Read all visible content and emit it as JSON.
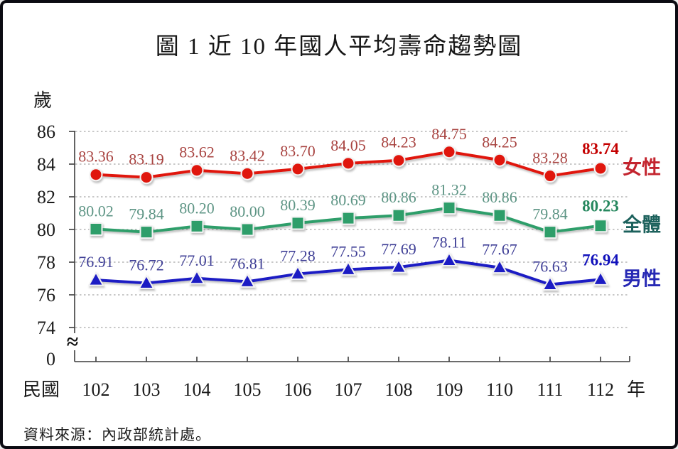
{
  "page": {
    "title": "圖 1  近 10 年國人平均壽命趨勢圖",
    "source": "資料來源：內政部統計處。"
  },
  "chart_data": {
    "type": "line",
    "title": "圖 1  近 10 年國人平均壽命趨勢圖",
    "unit_label": "歲",
    "x_prefix_label": "民國",
    "x_suffix_label": "年",
    "categories": [
      "102",
      "103",
      "104",
      "105",
      "106",
      "107",
      "108",
      "109",
      "110",
      "111",
      "112"
    ],
    "y_ticks": [
      "86",
      "84",
      "82",
      "80",
      "78",
      "76",
      "74"
    ],
    "y_zero_label": "0",
    "axis_break_symbol": "≈",
    "ylim_display": [
      74,
      86
    ],
    "grid": "horizontal-dashed",
    "legend_position": "right-of-line-end",
    "series": [
      {
        "id": "female",
        "name": "女性",
        "marker": "circle",
        "line_color": "#e01910",
        "label_color": "#a84340",
        "last_label_color": "#c40000",
        "legend_color": "#c3242e",
        "values": [
          83.36,
          83.19,
          83.62,
          83.42,
          83.7,
          84.05,
          84.23,
          84.75,
          84.25,
          83.28,
          83.74
        ],
        "labels": [
          "83.36",
          "83.19",
          "83.62",
          "83.42",
          "83.70",
          "84.05",
          "84.23",
          "84.75",
          "84.25",
          "83.28",
          "83.74"
        ]
      },
      {
        "id": "overall",
        "name": "全體",
        "marker": "square",
        "line_color": "#2f9e6a",
        "label_color": "#5e9585",
        "last_label_color": "#27885f",
        "legend_color": "#1c615c",
        "values": [
          80.02,
          79.84,
          80.2,
          80.0,
          80.39,
          80.69,
          80.86,
          81.32,
          80.86,
          79.84,
          80.23
        ],
        "labels": [
          "80.02",
          "79.84",
          "80.20",
          "80.00",
          "80.39",
          "80.69",
          "80.86",
          "81.32",
          "80.86",
          "79.84",
          "80.23"
        ]
      },
      {
        "id": "male",
        "name": "男性",
        "marker": "triangle",
        "line_color": "#1f1fc4",
        "label_color": "#3f3f96",
        "last_label_color": "#1111bb",
        "legend_color": "#2628b4",
        "values": [
          76.91,
          76.72,
          77.01,
          76.81,
          77.28,
          77.55,
          77.69,
          78.11,
          77.67,
          76.63,
          76.94
        ],
        "labels": [
          "76.91",
          "76.72",
          "77.01",
          "76.81",
          "77.28",
          "77.55",
          "77.69",
          "78.11",
          "77.67",
          "76.63",
          "76.94"
        ]
      }
    ],
    "source": "資料來源：內政部統計處。"
  }
}
